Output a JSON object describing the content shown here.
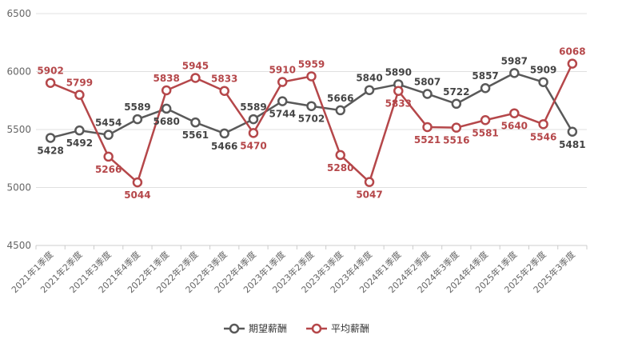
{
  "chart_data": {
    "type": "line",
    "categories": [
      "2021年1季度",
      "2021年2季度",
      "2021年3季度",
      "2021年4季度",
      "2022年1季度",
      "2022年2季度",
      "2022年3季度",
      "2022年4季度",
      "2023年1季度",
      "2023年2季度",
      "2023年3季度",
      "2023年4季度",
      "2024年1季度",
      "2024年2季度",
      "2024年3季度",
      "2024年4季度",
      "2025年1季度",
      "2025年2季度",
      "2025年3季度"
    ],
    "series": [
      {
        "name": "期望薪酬",
        "color": "#595959",
        "values": [
          5428,
          5492,
          5454,
          5589,
          5680,
          5561,
          5466,
          5589,
          5744,
          5702,
          5666,
          5840,
          5890,
          5807,
          5722,
          5857,
          5987,
          5909,
          5481
        ]
      },
      {
        "name": "平均薪酬",
        "color": "#b5474a",
        "values": [
          5902,
          5799,
          5266,
          5044,
          5838,
          5945,
          5833,
          5470,
          5910,
          5959,
          5280,
          5047,
          5833,
          5521,
          5516,
          5581,
          5640,
          5546,
          6068
        ]
      }
    ],
    "ylim": [
      4500,
      6500
    ],
    "yticks": [
      4500,
      5000,
      5500,
      6000,
      6500
    ],
    "grid": true,
    "legend_position": "bottom-center"
  }
}
